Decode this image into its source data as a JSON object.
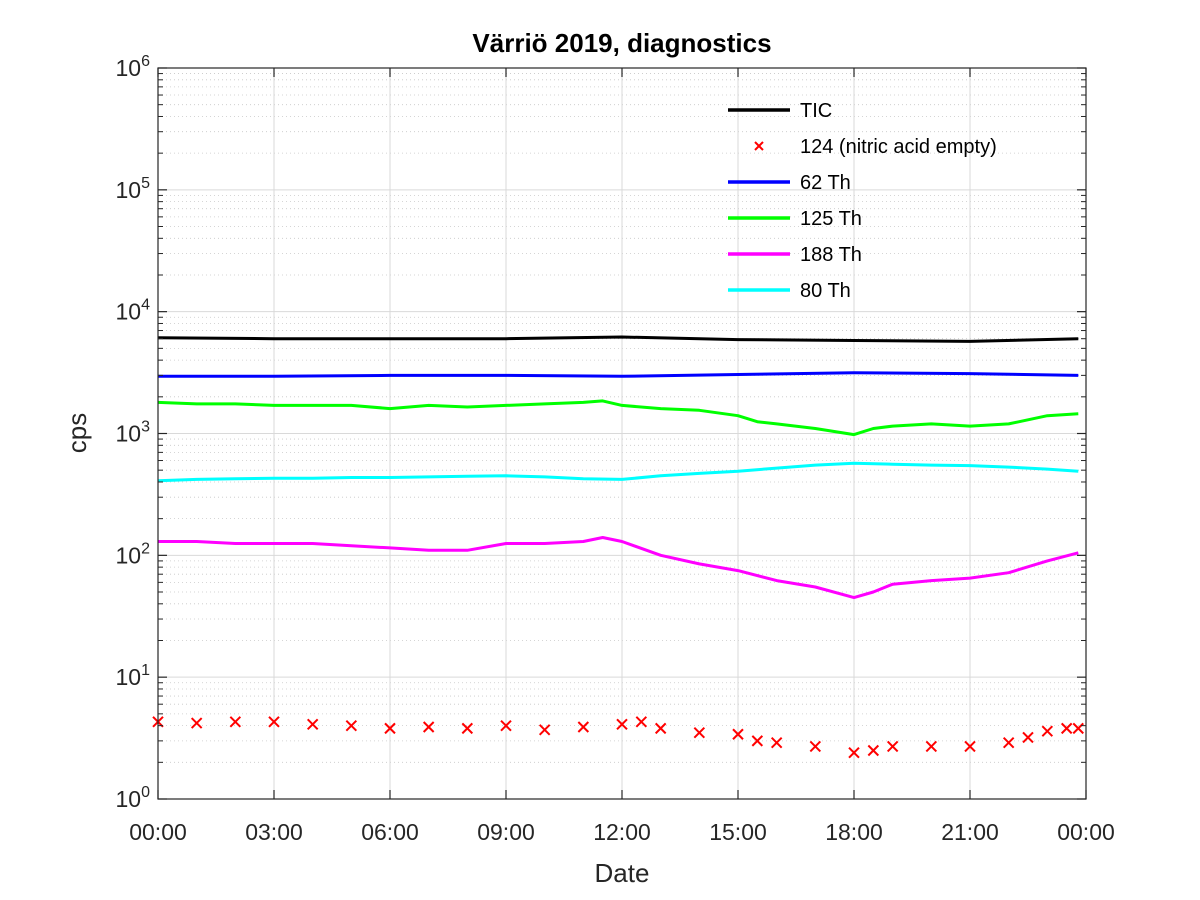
{
  "chart_data": {
    "type": "line",
    "title": "Värriö 2019, diagnostics",
    "xlabel": "Date",
    "ylabel": "cps",
    "x_tick_labels": [
      "00:00",
      "03:00",
      "06:00",
      "09:00",
      "12:00",
      "15:00",
      "18:00",
      "21:00",
      "00:00"
    ],
    "xlim_hours": [
      0,
      24
    ],
    "y_scale": "log",
    "ylim": [
      1,
      1000000
    ],
    "y_tick_labels": [
      {
        "base": "10",
        "exp": "0"
      },
      {
        "base": "10",
        "exp": "1"
      },
      {
        "base": "10",
        "exp": "2"
      },
      {
        "base": "10",
        "exp": "3"
      },
      {
        "base": "10",
        "exp": "4"
      },
      {
        "base": "10",
        "exp": "5"
      },
      {
        "base": "10",
        "exp": "6"
      }
    ],
    "grid": true,
    "legend_position": "top-right",
    "series": [
      {
        "name": "TIC",
        "color": "#000000",
        "style": "line",
        "x": [
          0,
          3,
          6,
          9,
          12,
          15,
          18,
          21,
          23.8
        ],
        "y": [
          6100,
          6000,
          6000,
          6000,
          6200,
          5900,
          5800,
          5700,
          6000
        ]
      },
      {
        "name": "124 (nitric acid empty)",
        "color": "#ff0000",
        "style": "marker-x",
        "x": [
          0,
          1,
          2,
          3,
          4,
          5,
          6,
          7,
          8,
          9,
          10,
          11,
          12,
          12.5,
          13,
          14,
          15,
          15.5,
          16,
          17,
          18,
          18.5,
          19,
          20,
          21,
          22,
          22.5,
          23,
          23.5,
          23.8
        ],
        "y": [
          4.3,
          4.2,
          4.3,
          4.3,
          4.1,
          4.0,
          3.8,
          3.9,
          3.8,
          4.0,
          3.7,
          3.9,
          4.1,
          4.3,
          3.8,
          3.5,
          3.4,
          3.0,
          2.9,
          2.7,
          2.4,
          2.5,
          2.7,
          2.7,
          2.7,
          2.9,
          3.2,
          3.6,
          3.8,
          3.8
        ]
      },
      {
        "name": "62 Th",
        "color": "#0000ff",
        "style": "line",
        "x": [
          0,
          3,
          6,
          9,
          12,
          15,
          18,
          21,
          23.8
        ],
        "y": [
          2950,
          2950,
          3000,
          3000,
          2950,
          3050,
          3150,
          3100,
          3000
        ]
      },
      {
        "name": "125 Th",
        "color": "#00ff00",
        "style": "line",
        "x": [
          0,
          1,
          2,
          3,
          4,
          5,
          6,
          7,
          8,
          9,
          10,
          11,
          11.5,
          12,
          13,
          14,
          15,
          15.5,
          16,
          17,
          18,
          18.5,
          19,
          20,
          21,
          22,
          23,
          23.8
        ],
        "y": [
          1800,
          1750,
          1750,
          1700,
          1700,
          1700,
          1600,
          1700,
          1650,
          1700,
          1750,
          1800,
          1850,
          1700,
          1600,
          1550,
          1400,
          1250,
          1200,
          1100,
          980,
          1100,
          1150,
          1200,
          1150,
          1200,
          1400,
          1450
        ]
      },
      {
        "name": "188 Th",
        "color": "#ff00ff",
        "style": "line",
        "x": [
          0,
          1,
          2,
          3,
          4,
          5,
          6,
          7,
          8,
          9,
          10,
          11,
          11.5,
          12,
          13,
          14,
          15,
          16,
          17,
          18,
          18.5,
          19,
          20,
          21,
          22,
          23,
          23.8
        ],
        "y": [
          130,
          130,
          125,
          125,
          125,
          120,
          115,
          110,
          110,
          125,
          125,
          130,
          140,
          130,
          100,
          85,
          75,
          62,
          55,
          45,
          50,
          58,
          62,
          65,
          72,
          90,
          105
        ]
      },
      {
        "name": "80 Th",
        "color": "#00ffff",
        "style": "line",
        "x": [
          0,
          1,
          2,
          3,
          4,
          5,
          6,
          7,
          8,
          9,
          10,
          11,
          12,
          13,
          14,
          15,
          16,
          17,
          18,
          19,
          20,
          21,
          22,
          23,
          23.8
        ],
        "y": [
          410,
          420,
          425,
          430,
          430,
          435,
          435,
          440,
          445,
          450,
          440,
          425,
          420,
          450,
          470,
          490,
          520,
          550,
          570,
          560,
          550,
          545,
          530,
          510,
          490
        ]
      }
    ]
  }
}
